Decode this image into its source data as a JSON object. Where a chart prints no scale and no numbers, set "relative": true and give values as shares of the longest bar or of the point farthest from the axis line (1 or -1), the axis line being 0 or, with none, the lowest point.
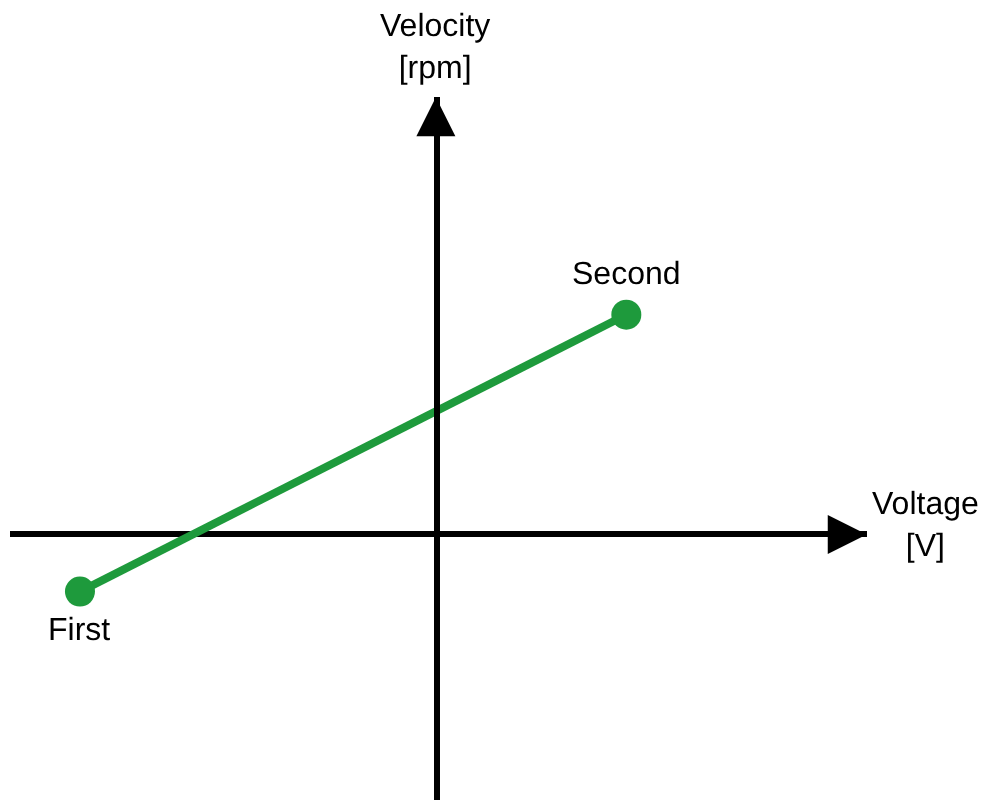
{
  "chart_data": {
    "type": "line",
    "relative": true,
    "grid": false,
    "marker": "circle",
    "line_style": "solid",
    "categories": [
      null,
      null
    ],
    "series": [
      {
        "color": "#1e9a3c",
        "values": [
          -0.26,
          1
        ]
      }
    ],
    "annotations": [
      "Velocity\n[rpm]",
      "Voltage\n[V]",
      "First",
      "Second"
    ]
  }
}
